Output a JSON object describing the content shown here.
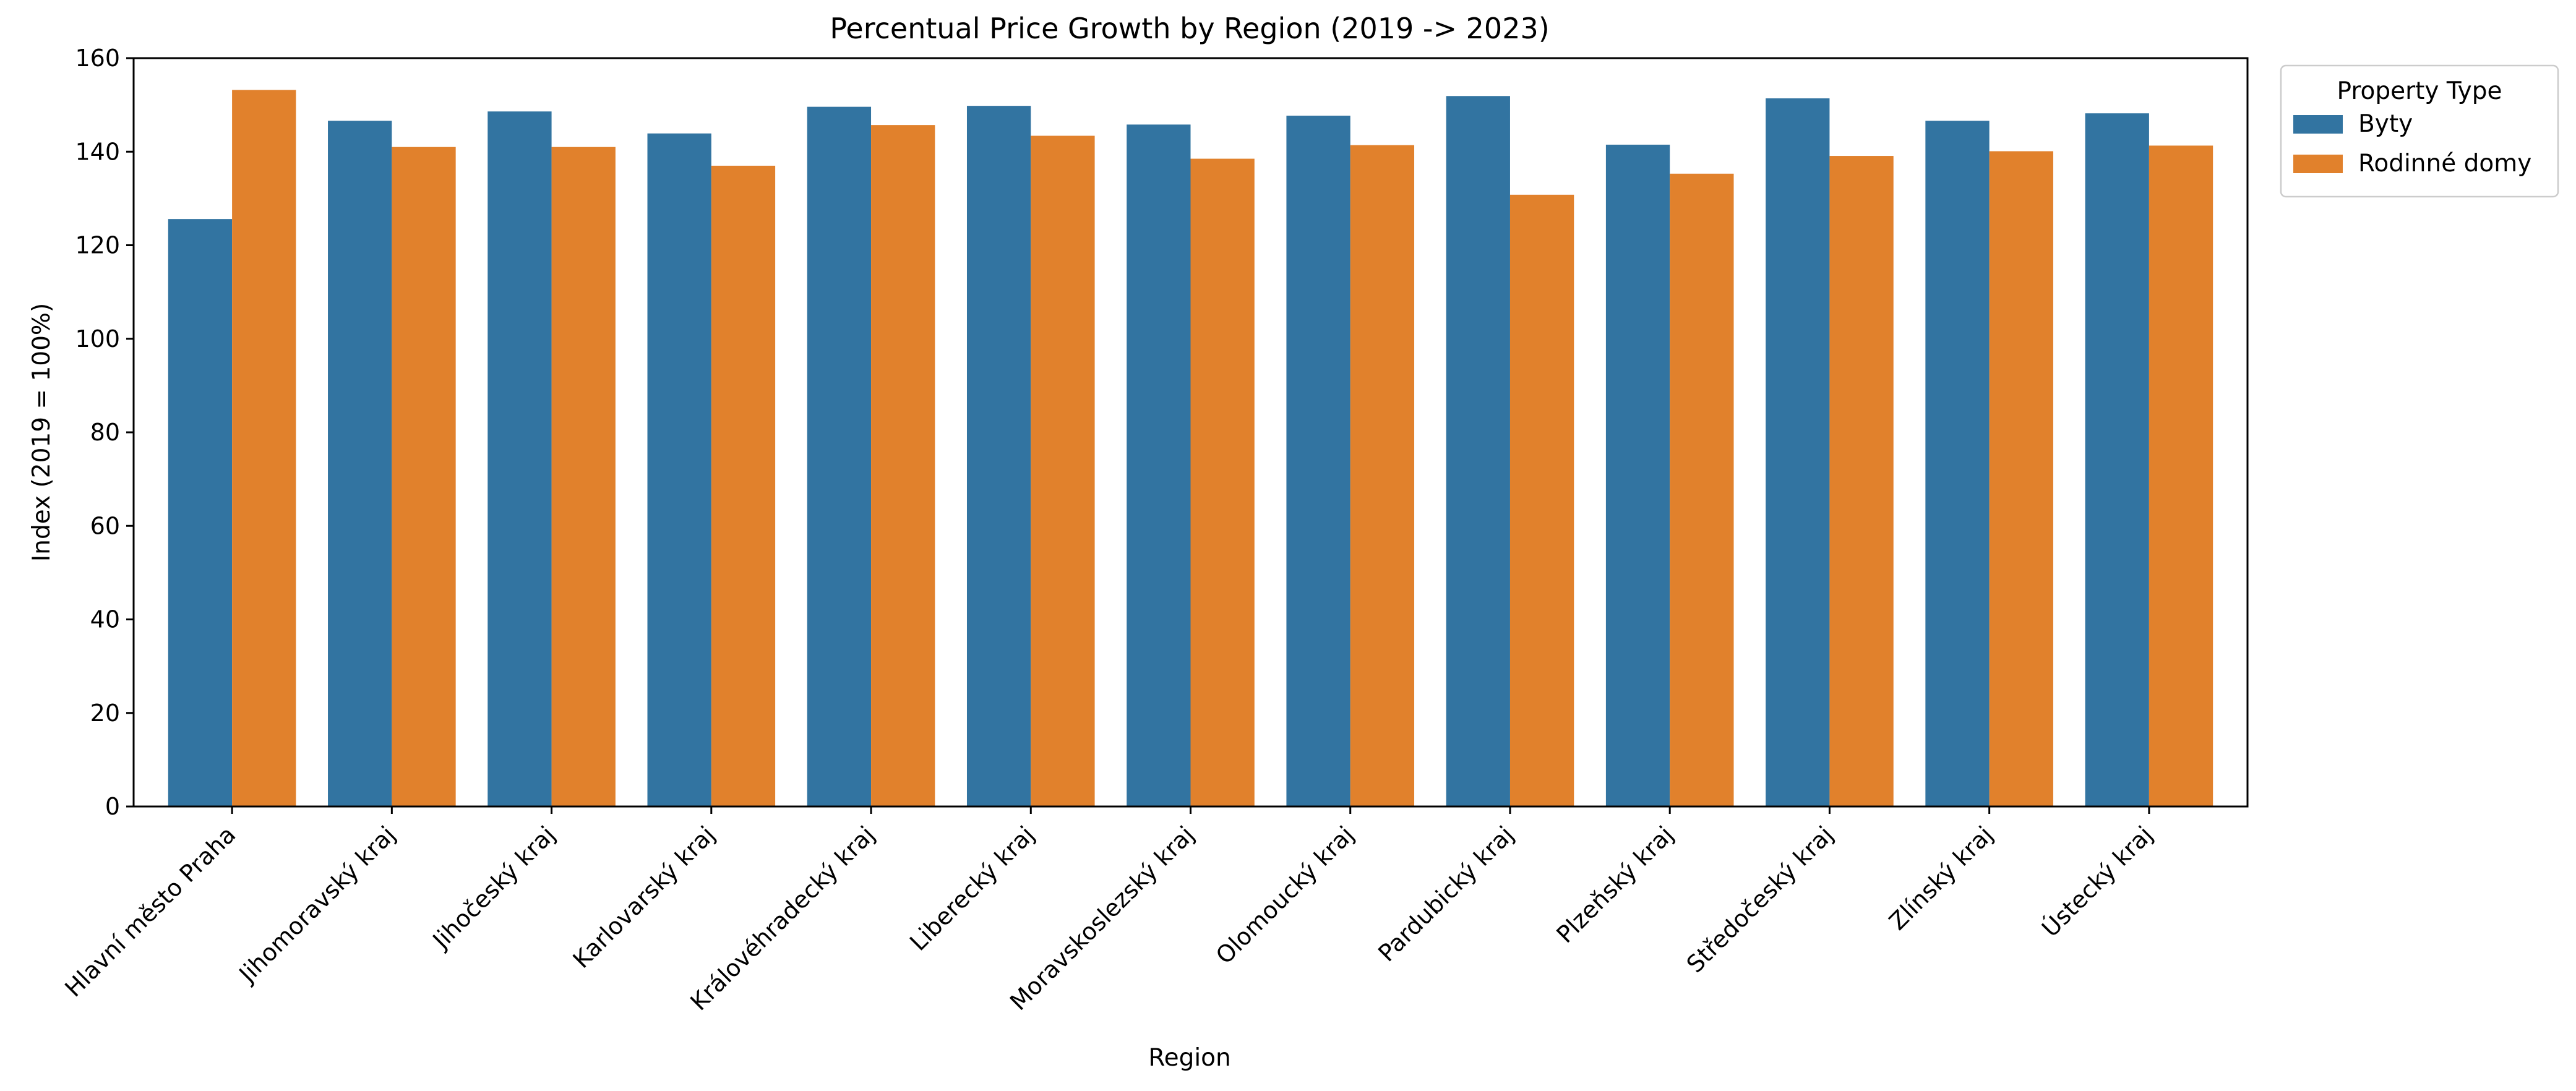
{
  "chart_data": {
    "type": "bar",
    "title": "Percentual Price Growth by Region (2019 -> 2023)",
    "xlabel": "Region",
    "ylabel": "Index (2019 = 100%)",
    "ylim": [
      0,
      160
    ],
    "yticks": [
      "0",
      "20",
      "40",
      "60",
      "80",
      "100",
      "120",
      "140",
      "160"
    ],
    "grid": false,
    "legend": {
      "title": "Property Type",
      "placement": "outside-top-right"
    },
    "categories": [
      "Hlavní město Praha",
      "Jihomoravský kraj",
      "Jihočeský kraj",
      "Karlovarský kraj",
      "Královéhradecký kraj",
      "Liberecký kraj",
      "Moravskoslezský kraj",
      "Olomoucký kraj",
      "Pardubický kraj",
      "Plzeňský kraj",
      "Středočeský kraj",
      "Zlínský kraj",
      "Ústecký kraj"
    ],
    "series": [
      {
        "name": "Byty",
        "color": "#3274a1",
        "values": [
          125.6,
          146.6,
          148.6,
          143.9,
          149.6,
          149.8,
          145.8,
          147.7,
          151.9,
          141.5,
          151.4,
          146.6,
          148.2
        ]
      },
      {
        "name": "Rodinné domy",
        "color": "#e1812c",
        "values": [
          153.2,
          141.0,
          141.0,
          137.0,
          145.7,
          143.4,
          138.5,
          141.4,
          130.8,
          135.3,
          139.1,
          140.1,
          141.3
        ]
      }
    ]
  }
}
